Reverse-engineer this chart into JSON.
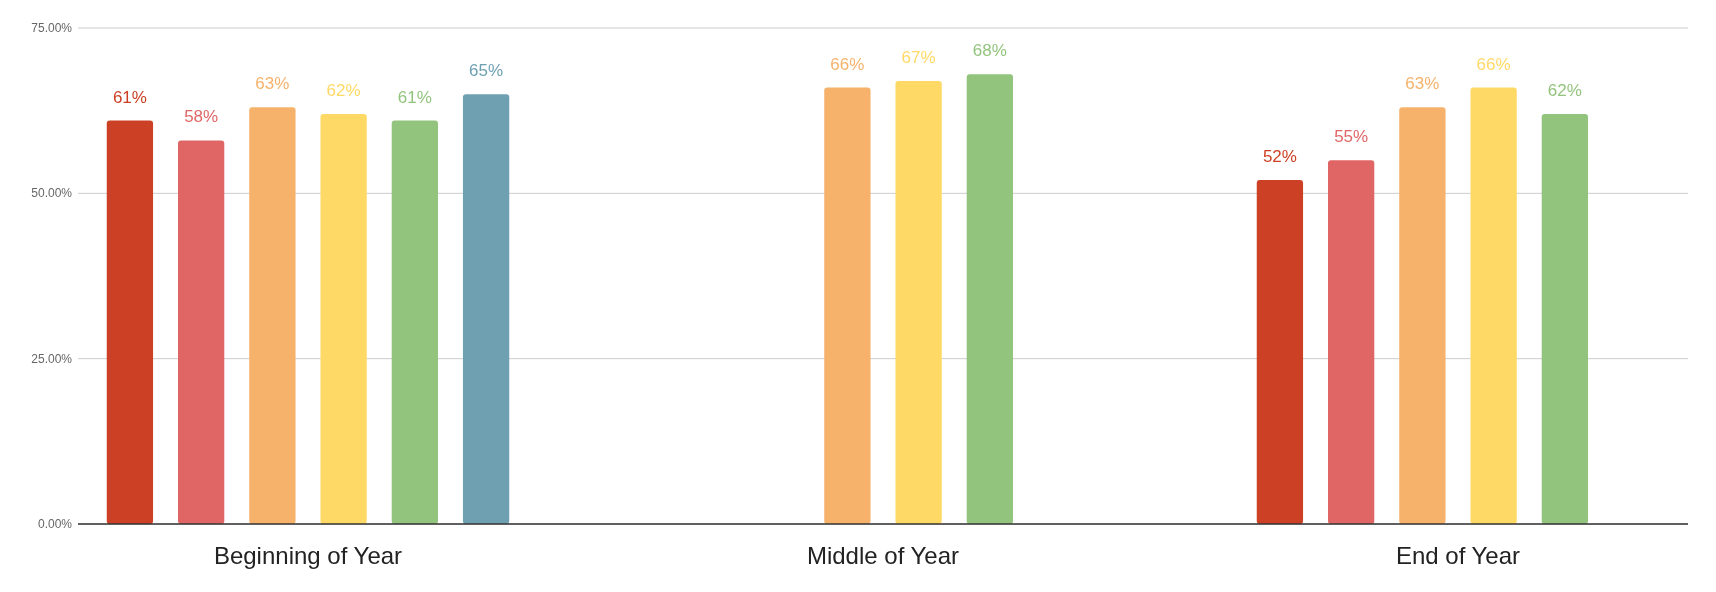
{
  "chart_data": {
    "type": "bar",
    "categories": [
      "Beginning of Year",
      "Middle of Year",
      "End of Year"
    ],
    "series": [
      {
        "color": "#cc4125",
        "values": [
          61,
          null,
          52
        ],
        "value_labels": [
          "61%",
          null,
          "52%"
        ]
      },
      {
        "color": "#e06666",
        "values": [
          58,
          null,
          55
        ],
        "value_labels": [
          "58%",
          null,
          "55%"
        ]
      },
      {
        "color": "#f6b26b",
        "values": [
          63,
          66,
          63
        ],
        "value_labels": [
          "63%",
          "66%",
          "63%"
        ]
      },
      {
        "color": "#ffd966",
        "values": [
          62,
          67,
          66
        ],
        "value_labels": [
          "62%",
          "67%",
          "66%"
        ]
      },
      {
        "color": "#93c47d",
        "values": [
          61,
          68,
          62
        ],
        "value_labels": [
          "61%",
          "68%",
          "62%"
        ]
      },
      {
        "color": "#6fa0b2",
        "values": [
          65,
          null,
          null
        ],
        "value_labels": [
          "65%",
          null,
          null
        ]
      }
    ],
    "ylim": [
      0,
      75
    ],
    "yticks": [
      {
        "value": 0,
        "label": "0.00%"
      },
      {
        "value": 25,
        "label": "25.00%"
      },
      {
        "value": 50,
        "label": "50.00%"
      },
      {
        "value": 75,
        "label": "75.00%"
      }
    ],
    "grid": "y"
  }
}
